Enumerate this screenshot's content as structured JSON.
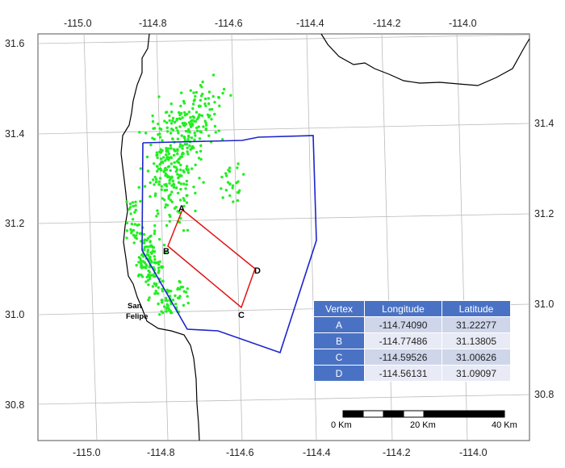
{
  "map": {
    "x_ticks": [
      "-115.0",
      "-114.8",
      "-114.6",
      "-114.4",
      "-114.2",
      "-114.0"
    ],
    "y_ticks": [
      "31.6",
      "31.4",
      "31.2",
      "31.0",
      "30.8"
    ],
    "colors": {
      "study_area": "#1c24cc",
      "rupture_rectangle": "#e01414",
      "epicenters": "#22ee22",
      "coastline": "#000000",
      "grid": "#bbbbbb"
    },
    "place_label_line1": "San",
    "place_label_line2": "Felipe",
    "vertex_labels": [
      "A",
      "B",
      "C",
      "D"
    ],
    "scale_bar": {
      "labels": [
        "0 Km",
        "20 Km",
        "40 Km"
      ]
    }
  },
  "vertex_table": {
    "headers": [
      "Vertex",
      "Longitude",
      "Latitude"
    ],
    "rows": [
      {
        "vertex": "A",
        "longitude": "-114.74090",
        "latitude": "31.22277"
      },
      {
        "vertex": "B",
        "longitude": "-114.77486",
        "latitude": "31.13805"
      },
      {
        "vertex": "C",
        "longitude": "-114.59526",
        "latitude": "31.00626"
      },
      {
        "vertex": "D",
        "longitude": "-114.56131",
        "latitude": "31.09097"
      }
    ]
  }
}
